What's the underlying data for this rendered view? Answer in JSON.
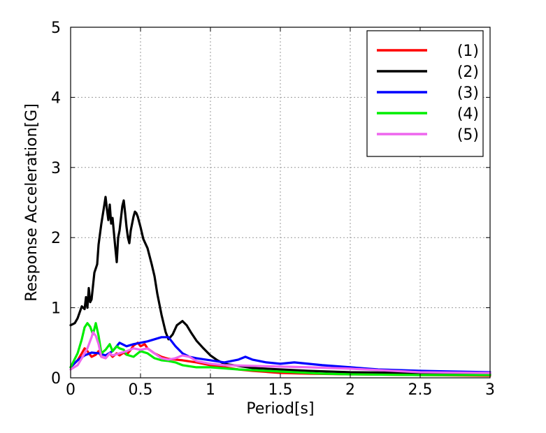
{
  "chart_data": {
    "type": "line",
    "title": "",
    "xlabel": "Period[s]",
    "ylabel": "Response Acceleration[G]",
    "xlim": [
      0,
      3
    ],
    "ylim": [
      0,
      5
    ],
    "xticks": [
      0,
      0.5,
      1,
      1.5,
      2,
      2.5,
      3
    ],
    "xtick_labels": [
      "0",
      "0.5",
      "1",
      "1.5",
      "2",
      "2.5",
      "3"
    ],
    "yticks": [
      0,
      1,
      2,
      3,
      4,
      5
    ],
    "ytick_labels": [
      "0",
      "1",
      "2",
      "3",
      "4",
      "5"
    ],
    "grid": true,
    "legend_position": "top-right",
    "series": [
      {
        "name": "(1)",
        "color": "#ff0000",
        "x": [
          0,
          0.05,
          0.08,
          0.1,
          0.12,
          0.15,
          0.18,
          0.2,
          0.22,
          0.25,
          0.28,
          0.3,
          0.33,
          0.35,
          0.38,
          0.4,
          0.43,
          0.45,
          0.48,
          0.5,
          0.53,
          0.55,
          0.6,
          0.65,
          0.7,
          0.8,
          0.9,
          1.0,
          1.1,
          1.2,
          1.3,
          1.5,
          1.7,
          2.0,
          2.5,
          3.0
        ],
        "y": [
          0.15,
          0.25,
          0.35,
          0.42,
          0.38,
          0.3,
          0.33,
          0.38,
          0.3,
          0.28,
          0.35,
          0.3,
          0.35,
          0.32,
          0.36,
          0.33,
          0.4,
          0.46,
          0.5,
          0.45,
          0.48,
          0.42,
          0.35,
          0.3,
          0.27,
          0.25,
          0.22,
          0.18,
          0.15,
          0.12,
          0.1,
          0.07,
          0.06,
          0.05,
          0.04,
          0.03
        ]
      },
      {
        "name": "(2)",
        "color": "#000000",
        "x": [
          0,
          0.03,
          0.05,
          0.08,
          0.1,
          0.11,
          0.12,
          0.13,
          0.14,
          0.15,
          0.17,
          0.19,
          0.2,
          0.22,
          0.24,
          0.25,
          0.26,
          0.27,
          0.28,
          0.29,
          0.3,
          0.32,
          0.33,
          0.34,
          0.35,
          0.37,
          0.38,
          0.39,
          0.4,
          0.41,
          0.42,
          0.43,
          0.45,
          0.46,
          0.47,
          0.48,
          0.5,
          0.52,
          0.55,
          0.58,
          0.6,
          0.62,
          0.65,
          0.68,
          0.7,
          0.73,
          0.76,
          0.8,
          0.83,
          0.86,
          0.9,
          0.95,
          1.0,
          1.05,
          1.1,
          1.2,
          1.3,
          1.5,
          1.7,
          2.0,
          2.5,
          3.0
        ],
        "y": [
          0.75,
          0.78,
          0.85,
          1.02,
          0.98,
          1.15,
          1.0,
          1.28,
          1.08,
          1.12,
          1.5,
          1.62,
          1.9,
          2.2,
          2.45,
          2.58,
          2.4,
          2.25,
          2.47,
          2.2,
          2.28,
          1.85,
          1.65,
          2.0,
          2.1,
          2.45,
          2.53,
          2.35,
          2.15,
          2.0,
          1.92,
          2.1,
          2.3,
          2.37,
          2.35,
          2.3,
          2.15,
          1.98,
          1.85,
          1.62,
          1.45,
          1.2,
          0.9,
          0.65,
          0.55,
          0.62,
          0.75,
          0.81,
          0.75,
          0.65,
          0.53,
          0.42,
          0.32,
          0.25,
          0.2,
          0.17,
          0.14,
          0.12,
          0.1,
          0.08,
          0.07,
          0.06
        ]
      },
      {
        "name": "(3)",
        "color": "#0000ff",
        "x": [
          0,
          0.05,
          0.1,
          0.15,
          0.2,
          0.25,
          0.3,
          0.35,
          0.4,
          0.45,
          0.5,
          0.55,
          0.6,
          0.65,
          0.7,
          0.75,
          0.8,
          0.85,
          0.9,
          1.0,
          1.1,
          1.2,
          1.25,
          1.3,
          1.4,
          1.5,
          1.6,
          1.7,
          1.8,
          2.0,
          2.2,
          2.5,
          3.0
        ],
        "y": [
          0.15,
          0.25,
          0.32,
          0.36,
          0.35,
          0.32,
          0.38,
          0.5,
          0.45,
          0.48,
          0.5,
          0.52,
          0.55,
          0.58,
          0.58,
          0.45,
          0.35,
          0.3,
          0.28,
          0.25,
          0.22,
          0.26,
          0.3,
          0.26,
          0.22,
          0.2,
          0.22,
          0.2,
          0.18,
          0.15,
          0.12,
          0.1,
          0.08
        ]
      },
      {
        "name": "(4)",
        "color": "#00ee00",
        "x": [
          0,
          0.05,
          0.08,
          0.1,
          0.12,
          0.14,
          0.16,
          0.18,
          0.2,
          0.22,
          0.25,
          0.28,
          0.3,
          0.33,
          0.35,
          0.38,
          0.4,
          0.45,
          0.5,
          0.55,
          0.6,
          0.65,
          0.7,
          0.75,
          0.8,
          0.9,
          1.0,
          1.2,
          1.4,
          1.6,
          1.8,
          2.0,
          2.5,
          3.0
        ],
        "y": [
          0.15,
          0.35,
          0.55,
          0.72,
          0.78,
          0.73,
          0.62,
          0.78,
          0.6,
          0.35,
          0.4,
          0.48,
          0.38,
          0.45,
          0.42,
          0.4,
          0.33,
          0.3,
          0.38,
          0.35,
          0.28,
          0.25,
          0.24,
          0.22,
          0.18,
          0.15,
          0.15,
          0.12,
          0.1,
          0.08,
          0.06,
          0.05,
          0.04,
          0.04
        ]
      },
      {
        "name": "(5)",
        "color": "#ee66ee",
        "x": [
          0,
          0.05,
          0.08,
          0.1,
          0.12,
          0.15,
          0.16,
          0.18,
          0.2,
          0.22,
          0.25,
          0.28,
          0.3,
          0.35,
          0.4,
          0.45,
          0.5,
          0.55,
          0.6,
          0.65,
          0.7,
          0.75,
          0.8,
          0.85,
          0.9,
          1.0,
          1.1,
          1.3,
          1.5,
          1.7,
          2.0,
          2.5,
          3.0
        ],
        "y": [
          0.12,
          0.18,
          0.28,
          0.35,
          0.42,
          0.58,
          0.65,
          0.6,
          0.48,
          0.3,
          0.28,
          0.35,
          0.32,
          0.35,
          0.38,
          0.42,
          0.4,
          0.42,
          0.35,
          0.28,
          0.26,
          0.28,
          0.32,
          0.3,
          0.24,
          0.2,
          0.18,
          0.17,
          0.16,
          0.15,
          0.13,
          0.08,
          0.07
        ]
      }
    ]
  }
}
